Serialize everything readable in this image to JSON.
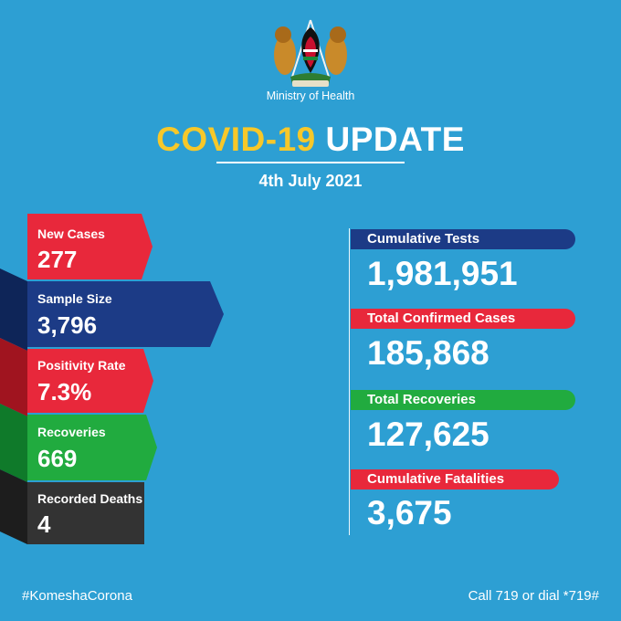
{
  "header": {
    "ministry": "Ministry of Health",
    "title_part1": "COVID-19",
    "title_part2": "UPDATE",
    "date": "4th July 2021"
  },
  "daily_stats": [
    {
      "label": "New Cases",
      "value": "277",
      "color": "#e8283b"
    },
    {
      "label": "Sample Size",
      "value": "3,796",
      "color": "#1c3b86"
    },
    {
      "label": "Positivity Rate",
      "value": "7.3%",
      "color": "#e8283b"
    },
    {
      "label": "Recoveries",
      "value": "669",
      "color": "#21ab3f"
    },
    {
      "label": "Recorded Deaths",
      "value": "4",
      "color": "#333333"
    }
  ],
  "cumulative": [
    {
      "label": "Cumulative Tests",
      "value": "1,981,951",
      "color": "#1c3b86"
    },
    {
      "label": "Total Confirmed Cases",
      "value": "185,868",
      "color": "#e8283b"
    },
    {
      "label": "Total Recoveries",
      "value": "127,625",
      "color": "#21ab3f"
    },
    {
      "label": "Cumulative Fatalities",
      "value": "3,675",
      "color": "#e8283b"
    }
  ],
  "footer": {
    "hashtag": "#KomeshaCorona",
    "call": "Call 719 or dial *719#"
  }
}
